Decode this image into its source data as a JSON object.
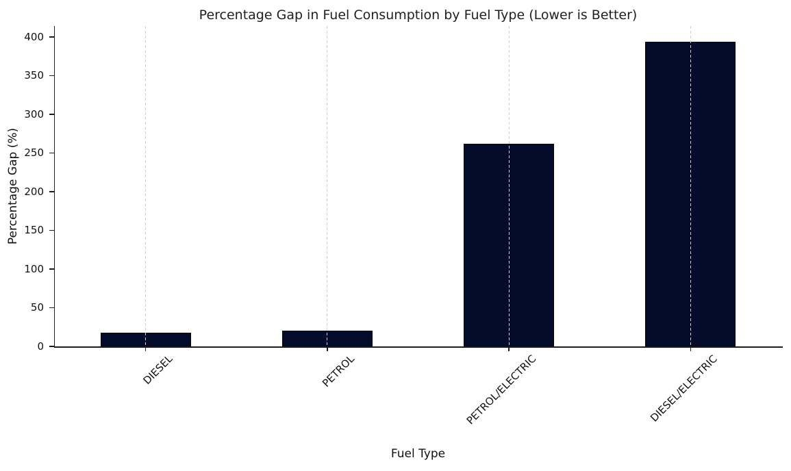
{
  "chart_data": {
    "type": "bar",
    "title": "Percentage Gap in Fuel Consumption by Fuel Type (Lower is Better)",
    "xlabel": "Fuel Type",
    "ylabel": "Percentage Gap (%)",
    "categories": [
      "DIESEL",
      "PETROL",
      "PETROL/ELECTRIC",
      "DIESEL/ELECTRIC"
    ],
    "values": [
      18,
      20,
      262,
      394
    ],
    "yticks": [
      0,
      50,
      100,
      150,
      200,
      250,
      300,
      350,
      400
    ],
    "ylim": [
      0,
      414
    ],
    "grid": "vertical dashed gridlines at each category, drawn over bars",
    "legend": "none",
    "bar_color": "#030b2b",
    "bar_edge_color": "#010409",
    "grid_color": "#cfcfcf",
    "axis_color": "#1c1c1c",
    "background_color": "#ffffff"
  }
}
